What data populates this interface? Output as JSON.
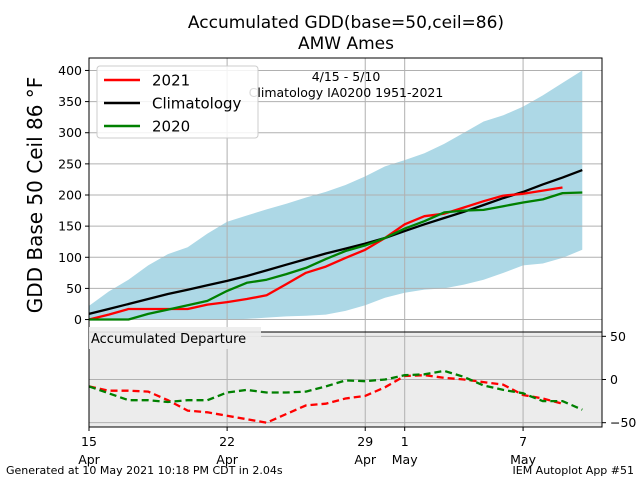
{
  "title_line1": "Accumulated GDD(base=50,ceil=86)",
  "title_line2": "AMW Ames",
  "annotation_line1": "4/15 - 5/10",
  "annotation_line2": "Climatology IA0200 1951-2021",
  "departure_label": "Accumulated Departure",
  "footer_left": "Generated at 10 May 2021 10:18 PM CDT in 2.04s",
  "footer_right": "IEM Autoplot App #51",
  "colors": {
    "y2021": "#ff0000",
    "climatology": "#000000",
    "y2020": "#008000",
    "range_fill": "#add8e6",
    "departure_bg": "#ececec",
    "grid": "#b0b0b0"
  },
  "chart_data": [
    {
      "type": "line",
      "title": "Accumulated GDD(base=50,ceil=86)",
      "subtitle": "AMW Ames",
      "ylabel": "GDD Base 50 Ceil 86 °F",
      "ylim": [
        -20,
        420
      ],
      "yticks": [
        0,
        50,
        100,
        150,
        200,
        250,
        300,
        350,
        400
      ],
      "x": [
        "2021-04-15",
        "2021-04-16",
        "2021-04-17",
        "2021-04-18",
        "2021-04-19",
        "2021-04-20",
        "2021-04-21",
        "2021-04-22",
        "2021-04-23",
        "2021-04-24",
        "2021-04-25",
        "2021-04-26",
        "2021-04-27",
        "2021-04-28",
        "2021-04-29",
        "2021-04-30",
        "2021-05-01",
        "2021-05-02",
        "2021-05-03",
        "2021-05-04",
        "2021-05-05",
        "2021-05-06",
        "2021-05-07",
        "2021-05-08",
        "2021-05-09",
        "2021-05-10"
      ],
      "xlim": [
        "2021-04-15",
        "2021-05-11"
      ],
      "xtick_labels": [
        {
          "x": "2021-04-15",
          "label": "15",
          "sublabel": "Apr"
        },
        {
          "x": "2021-04-22",
          "label": "22",
          "sublabel": "Apr"
        },
        {
          "x": "2021-04-29",
          "label": "29",
          "sublabel": "Apr"
        },
        {
          "x": "2021-05-01",
          "label": "1",
          "sublabel": "May"
        },
        {
          "x": "2021-05-07",
          "label": "7",
          "sublabel": "May"
        }
      ],
      "grid": true,
      "legend_placement": "top-left",
      "series": [
        {
          "name": "2021",
          "color": "#ff0000",
          "values": [
            0,
            8,
            17,
            17,
            17,
            17,
            24,
            28,
            33,
            39,
            57,
            75,
            85,
            99,
            112,
            131,
            153,
            166,
            170,
            180,
            190,
            199,
            202,
            207,
            212,
            null
          ]
        },
        {
          "name": "Climatology",
          "color": "#000000",
          "values": [
            9,
            17,
            25,
            33,
            41,
            48,
            55,
            62,
            70,
            79,
            88,
            97,
            106,
            114,
            122,
            131,
            142,
            153,
            163,
            173,
            184,
            195,
            205,
            217,
            228,
            240
          ]
        },
        {
          "name": "2020",
          "color": "#008000",
          "values": [
            0,
            0,
            0,
            9,
            16,
            23,
            30,
            46,
            59,
            64,
            73,
            83,
            97,
            110,
            119,
            131,
            146,
            158,
            172,
            175,
            176,
            182,
            188,
            193,
            203,
            204
          ]
        }
      ],
      "range_band": {
        "lower": [
          0,
          0,
          0,
          0,
          0,
          0,
          0,
          0,
          1,
          3,
          5,
          6,
          8,
          14,
          23,
          35,
          43,
          48,
          50,
          56,
          64,
          75,
          87,
          90,
          99,
          112
        ],
        "upper": [
          22,
          45,
          64,
          87,
          105,
          116,
          138,
          157,
          167,
          177,
          186,
          196,
          205,
          216,
          230,
          246,
          256,
          267,
          282,
          300,
          318,
          328,
          342,
          360,
          380,
          400
        ]
      }
    },
    {
      "type": "line",
      "title": "Accumulated Departure",
      "ylim": [
        -55,
        55
      ],
      "yticks": [
        -50,
        0,
        50
      ],
      "grid": true,
      "series": [
        {
          "name": "2021",
          "color": "#ff0000",
          "values": [
            -8,
            -13,
            -13,
            -14,
            -24,
            -36,
            -38,
            -42,
            -46,
            -50,
            -40,
            -30,
            -28,
            -22,
            -19,
            -9,
            4,
            5,
            2,
            0,
            -3,
            -6,
            -18,
            -22,
            -28,
            null
          ]
        },
        {
          "name": "2020",
          "color": "#008000",
          "values": [
            -8,
            -16,
            -24,
            -24,
            -26,
            -24,
            -24,
            -15,
            -12,
            -15,
            -15,
            -14,
            -8,
            -1,
            -2,
            0,
            5,
            6,
            10,
            3,
            -7,
            -12,
            -16,
            -25,
            -25,
            -35
          ]
        }
      ]
    }
  ]
}
